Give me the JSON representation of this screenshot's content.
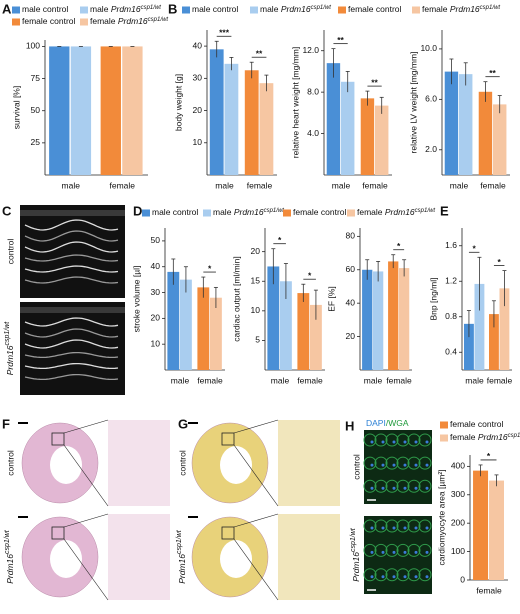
{
  "chart_data": [
    {
      "panel": "A",
      "legend": [
        {
          "name": "male control",
          "color": "#4a8fd6"
        },
        {
          "name": "male",
          "gene": "Prdm16",
          "sup": "csp1/wt",
          "color": "#a9cdef"
        },
        {
          "name": "female control",
          "color": "#f28a3a"
        },
        {
          "name": "female",
          "gene": "Prdm16",
          "sup": "csp1/wt",
          "color": "#f6c6a2"
        }
      ],
      "charts": [
        {
          "type": "bar",
          "ylabel": "survival [%]",
          "categories": [
            "male",
            "female"
          ],
          "values": [
            100,
            100,
            100,
            100
          ],
          "errors": [
            0,
            0,
            0,
            0
          ],
          "ylim": [
            0,
            105
          ],
          "yticks": [
            25,
            50,
            75,
            100
          ]
        }
      ]
    },
    {
      "panel": "B",
      "legend": [
        {
          "name": "male control",
          "color": "#4a8fd6"
        },
        {
          "name": "male",
          "gene": "Prdm16",
          "sup": "csp1/wt",
          "color": "#a9cdef"
        },
        {
          "name": "female control",
          "color": "#f28a3a"
        },
        {
          "name": "female",
          "gene": "Prdm16",
          "sup": "csp1/wt",
          "color": "#f6c6a2"
        }
      ],
      "charts": [
        {
          "type": "bar",
          "ylabel": "body weight [g]",
          "categories": [
            "male",
            "female"
          ],
          "values": [
            39,
            34.5,
            32.5,
            28.5
          ],
          "errors": [
            2.5,
            2,
            2.5,
            2.5
          ],
          "ylim": [
            0,
            45
          ],
          "yticks": [
            10,
            20,
            30,
            40
          ],
          "sig": [
            "***",
            "**"
          ]
        },
        {
          "type": "bar",
          "ylabel": "relative heart weight [mg/mm]",
          "categories": [
            "male",
            "female"
          ],
          "values": [
            10.8,
            9,
            7.4,
            6.7
          ],
          "errors": [
            1.4,
            1,
            0.7,
            0.8
          ],
          "ylim": [
            0,
            14
          ],
          "yticks": [
            {
              "value": 4,
              "label": "4.0"
            },
            {
              "value": 8,
              "label": "8.0"
            },
            {
              "value": 12,
              "label": "12.0"
            }
          ],
          "sig": [
            "**",
            "**"
          ]
        },
        {
          "type": "bar",
          "ylabel": "relative LV weight [mg/mm]",
          "categories": [
            "male",
            "female"
          ],
          "values": [
            8.2,
            8,
            6.6,
            5.6
          ],
          "errors": [
            1,
            0.9,
            0.8,
            0.7
          ],
          "ylim": [
            0,
            11.5
          ],
          "yticks": [
            {
              "value": 2,
              "label": "2.0"
            },
            {
              "value": 6,
              "label": "6.0"
            },
            {
              "value": 10,
              "label": "10.0"
            }
          ],
          "sig": [
            null,
            "**"
          ]
        }
      ]
    },
    {
      "panel": "D",
      "legend": [
        {
          "name": "male control",
          "color": "#4a8fd6"
        },
        {
          "name": "male",
          "gene": "Prdm16",
          "sup": "csp1/wt",
          "color": "#a9cdef"
        },
        {
          "name": "female control",
          "color": "#f28a3a"
        },
        {
          "name": "female",
          "gene": "Prdm16",
          "sup": "csp1/wt",
          "color": "#f6c6a2"
        }
      ],
      "charts": [
        {
          "type": "bar",
          "ylabel": "stroke volume [µl]",
          "categories": [
            "male",
            "female"
          ],
          "values": [
            38,
            35,
            32,
            28
          ],
          "errors": [
            5,
            5,
            4,
            4
          ],
          "ylim": [
            0,
            55
          ],
          "yticks": [
            10,
            20,
            30,
            40,
            50
          ],
          "sig": [
            null,
            "*"
          ]
        },
        {
          "type": "bar",
          "ylabel": "cardiac output [ml/min]",
          "categories": [
            "male",
            "female"
          ],
          "values": [
            17.5,
            15,
            13,
            11
          ],
          "errors": [
            3,
            3,
            1.5,
            2.5
          ],
          "ylim": [
            0,
            24
          ],
          "yticks": [
            5,
            10,
            15,
            20
          ],
          "sig": [
            "*",
            "*"
          ]
        },
        {
          "type": "bar",
          "ylabel": "EF [%]",
          "categories": [
            "male",
            "female"
          ],
          "values": [
            60,
            59,
            65,
            61
          ],
          "errors": [
            6,
            6,
            4,
            5
          ],
          "ylim": [
            0,
            85
          ],
          "yticks": [
            20,
            40,
            60,
            80
          ],
          "sig": [
            null,
            "*"
          ]
        }
      ]
    },
    {
      "panel": "E",
      "colors": [
        "#4a8fd6",
        "#a9cdef",
        "#f28a3a",
        "#f6c6a2"
      ],
      "charts": [
        {
          "type": "bar",
          "ylabel": "Bnp [ng/ml]",
          "categories": [
            "male",
            "female"
          ],
          "values": [
            0.72,
            1.17,
            0.83,
            1.12
          ],
          "errors": [
            0.15,
            0.3,
            0.15,
            0.2
          ],
          "ylim": [
            0.2,
            1.8
          ],
          "yticks": [
            0.4,
            0.8,
            1.2,
            1.6
          ],
          "sig": [
            "*",
            "*"
          ]
        }
      ]
    },
    {
      "panel": "H",
      "legend": [
        {
          "name": "female control",
          "color": "#f28a3a"
        },
        {
          "name": "female",
          "gene": "Prdm16",
          "sup": "csp1/wt",
          "color": "#f6c6a2"
        }
      ],
      "charts": [
        {
          "type": "bar",
          "ylabel": "cardiomyocyte area [µm²]",
          "categories": [
            "female"
          ],
          "values": [
            385,
            350
          ],
          "errors": [
            20,
            20
          ],
          "ylim": [
            0,
            440
          ],
          "yticks": [
            0,
            100,
            200,
            300,
            400
          ],
          "sig": [
            "*"
          ]
        }
      ]
    }
  ],
  "images": [
    {
      "letter": "C",
      "control": "control",
      "mutant": {
        "gene": "Prdm16",
        "sup": "csp1/wt"
      }
    },
    {
      "letter": "F",
      "control": "control",
      "mutant": {
        "gene": "Prdm16",
        "sup": "csp1/wt"
      }
    },
    {
      "letter": "G",
      "control": "control",
      "mutant": {
        "gene": "Prdm16",
        "sup": "csp1/wt"
      }
    },
    {
      "letter": "H",
      "stain": [
        "DAPI",
        "/WGA"
      ],
      "control": "control",
      "mutant": {
        "gene": "Prdm16",
        "sup": "csp1/wt"
      }
    }
  ]
}
